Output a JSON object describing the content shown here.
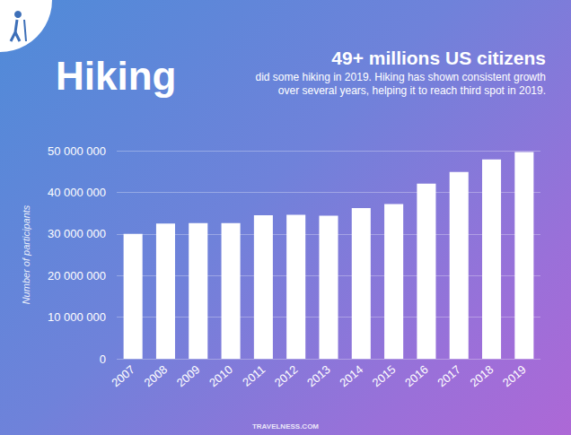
{
  "chart_data": {
    "type": "bar",
    "title": "Hiking",
    "subtitle": "49+ millions US citizens",
    "annotations": {
      "description": [
        "did some hiking in 2019. Hiking has shown consistent growth",
        "over several years, helping it to reach third spot in 2019."
      ],
      "footer": "TRAVELNESS.COM"
    },
    "y_label": "Number of participants",
    "categories": [
      "2007",
      "2008",
      "2009",
      "2010",
      "2011",
      "2012",
      "2013",
      "2014",
      "2015",
      "2016",
      "2017",
      "2018",
      "2019"
    ],
    "values": [
      30000000,
      32500000,
      32600000,
      32600000,
      34500000,
      34600000,
      34400000,
      36200000,
      37200000,
      42100000,
      44900000,
      47900000,
      49700000
    ],
    "color": "#ffffff",
    "ylim": [
      0,
      50000000
    ],
    "yticks": [
      0,
      {
        "value": 10000000,
        "label": "10 000 000"
      },
      {
        "value": 20000000,
        "label": "20 000 000"
      },
      {
        "value": 30000000,
        "label": "30 000 000"
      },
      {
        "value": 40000000,
        "label": "40 000 000"
      },
      {
        "value": 50000000,
        "label": "50 000 000"
      }
    ],
    "grid": true
  }
}
